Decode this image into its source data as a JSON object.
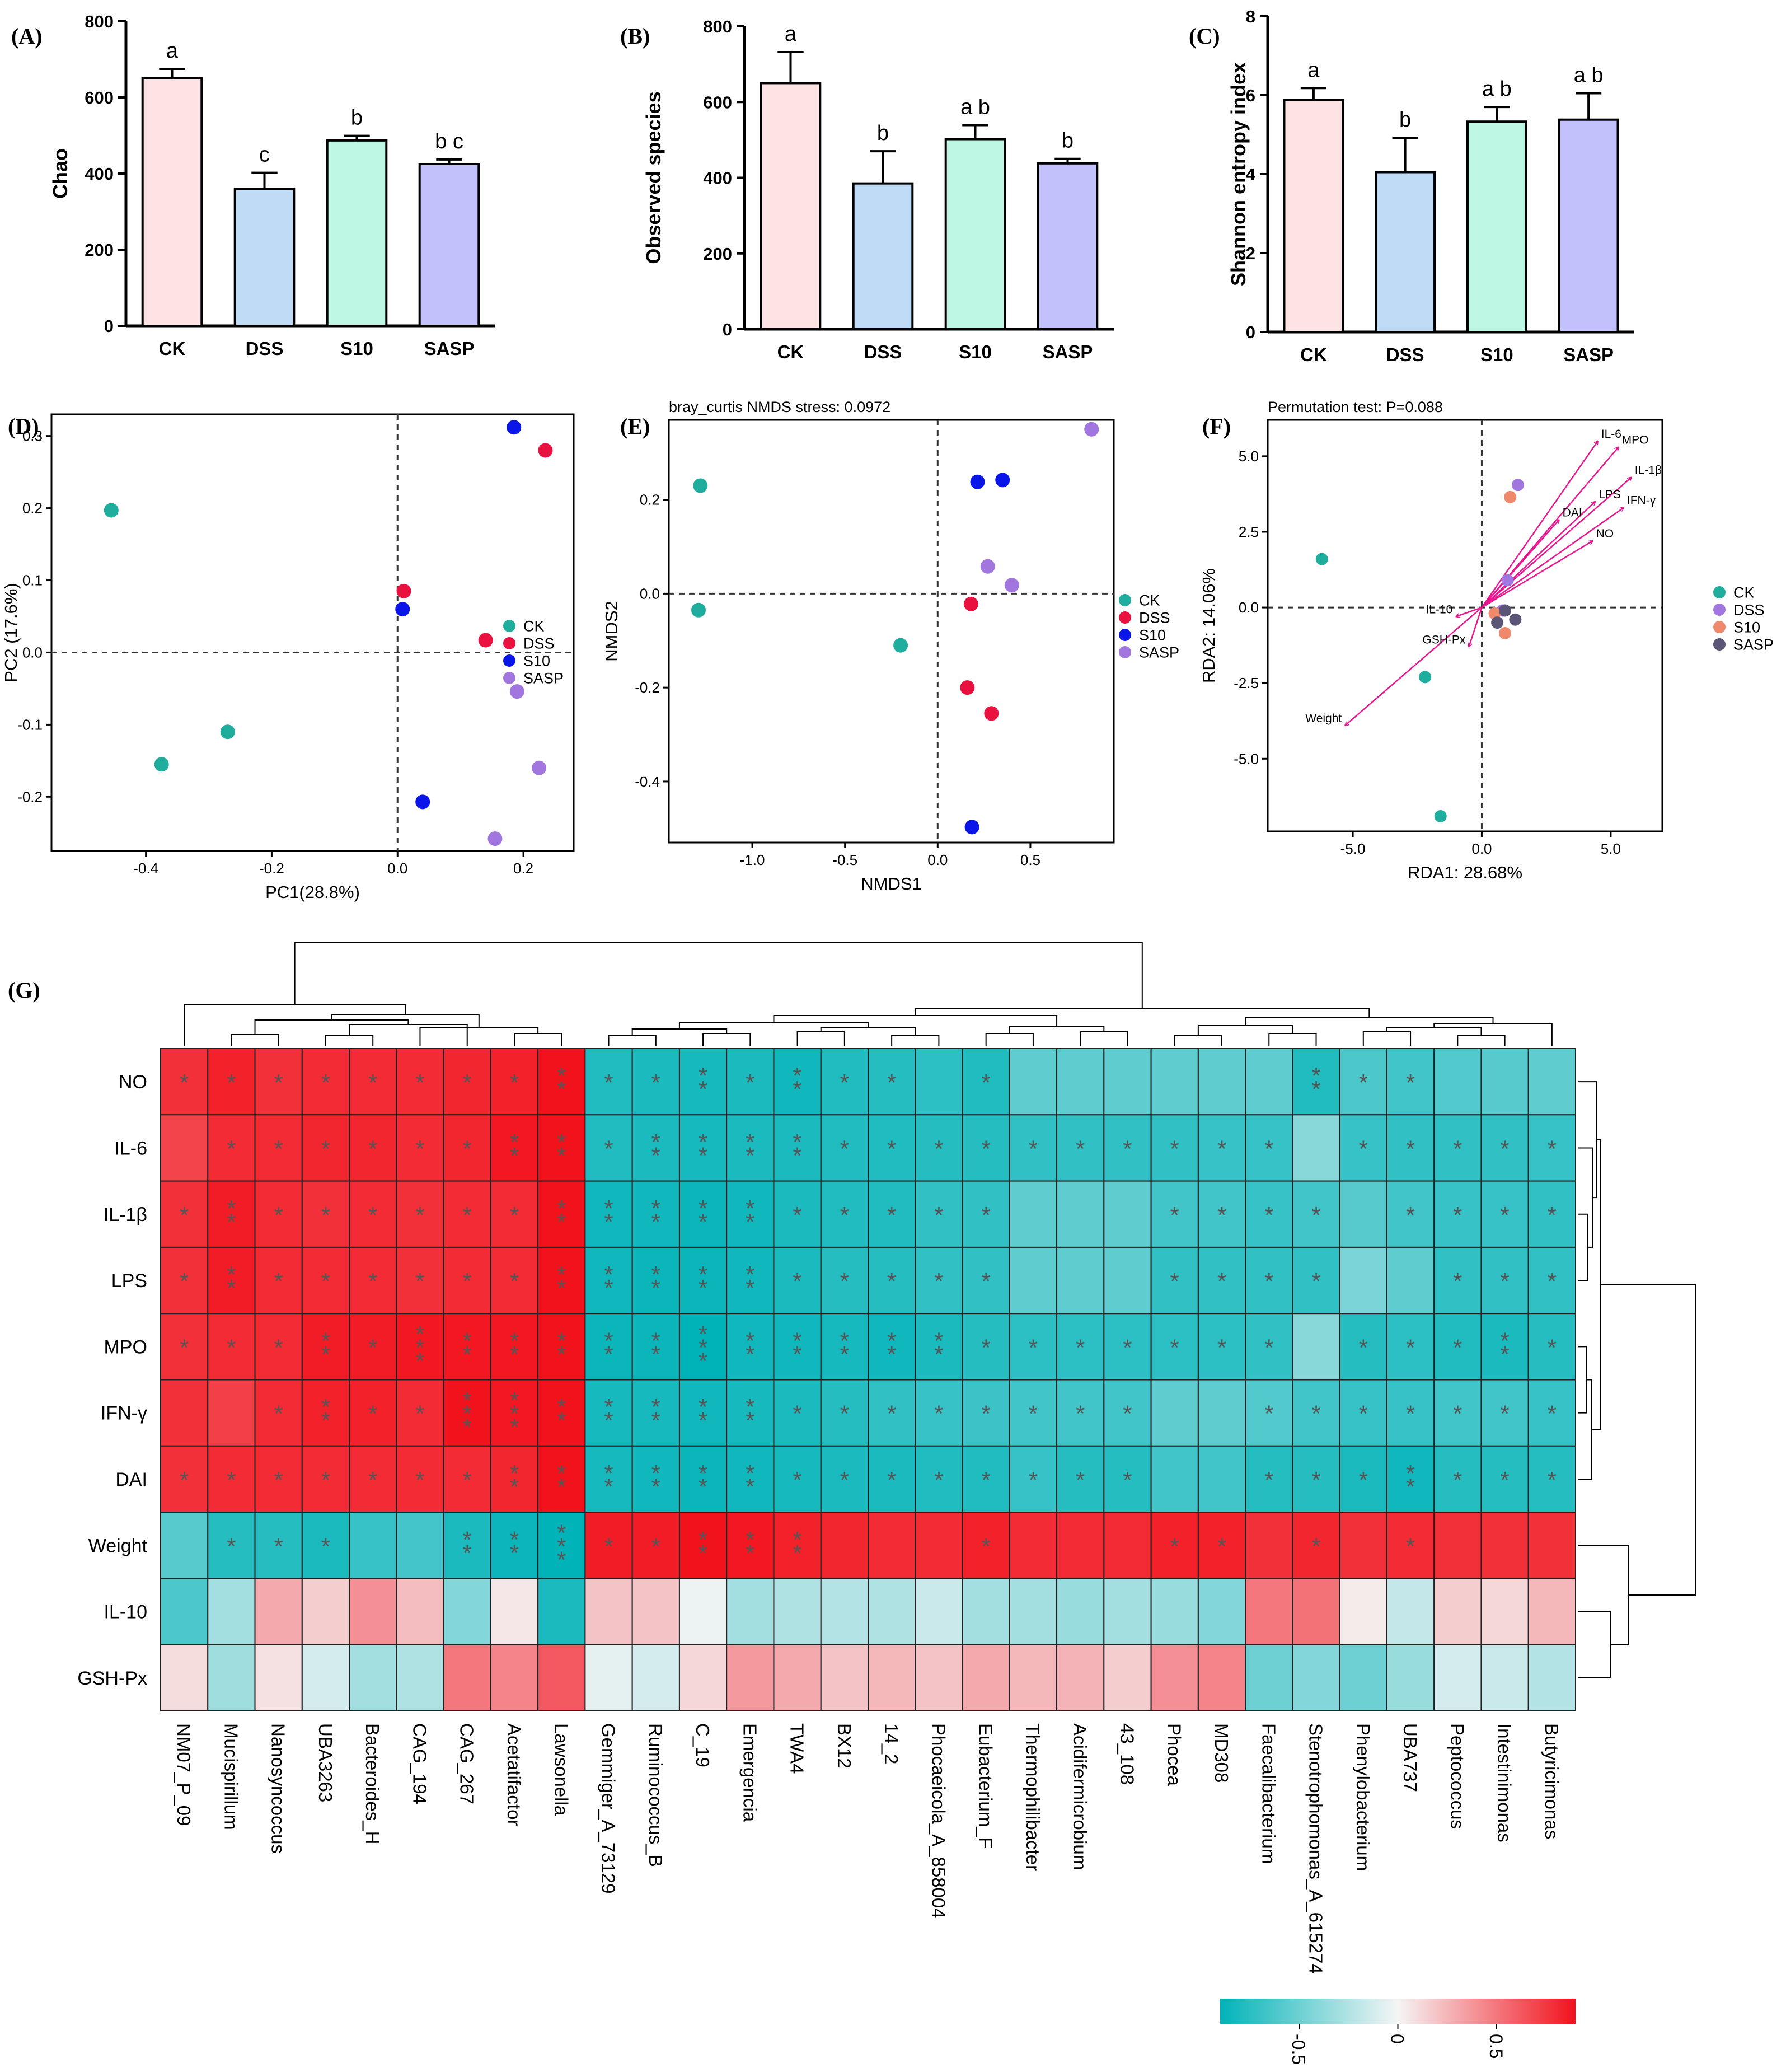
{
  "panels": {
    "A": "(A)",
    "B": "(B)",
    "C": "(C)",
    "D": "(D)",
    "E": "(E)",
    "F": "(F)",
    "G": "(G)"
  },
  "colors": {
    "CK": "#fde3e3",
    "DSS": "#bfdbf6",
    "S10": "#bff7e5",
    "SASP": "#c3c1fb",
    "scatter_CK": "#1fad9e",
    "scatter_DSS": "#e8113f",
    "scatter_S10": "#0a16e8",
    "scatter_SASP": "#a276df",
    "rda_CK": "#1fad9e",
    "rda_DSS": "#a276df",
    "rda_S10": "#ee8a6b",
    "rda_SASP": "#5b5576",
    "arrow": "#e6178f",
    "heat_low": "#00b3b8",
    "heat_mid": "#f5f5f5",
    "heat_high": "#f2121c"
  },
  "chart_data": [
    {
      "type": "bar",
      "panel": "A",
      "categories": [
        "CK",
        "DSS",
        "S10",
        "SASP"
      ],
      "values": [
        650,
        360,
        487,
        425
      ],
      "errors": [
        25,
        42,
        12,
        12
      ],
      "letters": [
        "a",
        "c",
        "b",
        "b c"
      ],
      "ylabel": "Chao",
      "ylim": [
        0,
        800
      ],
      "yticks": [
        "0",
        "200",
        "400",
        "600",
        "800"
      ]
    },
    {
      "type": "bar",
      "panel": "B",
      "categories": [
        "CK",
        "DSS",
        "S10",
        "SASP"
      ],
      "values": [
        650,
        385,
        502,
        438
      ],
      "errors": [
        82,
        85,
        37,
        12
      ],
      "letters": [
        "a",
        "b",
        "a b",
        "b"
      ],
      "ylabel": "Observed species",
      "ylim": [
        0,
        800
      ],
      "yticks": [
        "0",
        "200",
        "400",
        "600",
        "800"
      ]
    },
    {
      "type": "bar",
      "panel": "C",
      "categories": [
        "CK",
        "DSS",
        "S10",
        "SASP"
      ],
      "values": [
        5.88,
        4.05,
        5.33,
        5.38
      ],
      "errors": [
        0.3,
        0.87,
        0.37,
        0.67
      ],
      "letters": [
        "a",
        "b",
        "a b",
        "a b"
      ],
      "ylabel": "Shannon entropy index",
      "ylim": [
        0,
        8
      ],
      "yticks": [
        "0",
        "2",
        "4",
        "6",
        "8"
      ]
    },
    {
      "type": "scatter",
      "panel": "D",
      "xlabel": "PC1(28.8%)",
      "ylabel": "PC2 (17.6%)",
      "xlim": [
        -0.55,
        0.28
      ],
      "ylim": [
        -0.275,
        0.33
      ],
      "xticks": [
        -0.4,
        -0.2,
        0.0,
        0.2
      ],
      "xtick_labels": [
        "-0.4",
        "-0.2",
        "0.0",
        "0.2"
      ],
      "yticks": [
        -0.2,
        -0.1,
        0.0,
        0.1,
        0.2,
        0.3
      ],
      "ytick_labels": [
        "-0.2",
        "-0.1",
        "0.0",
        "0.1",
        "0.2",
        "0.3"
      ],
      "legend": [
        "CK",
        "DSS",
        "S10",
        "SASP"
      ],
      "series": [
        {
          "name": "CK",
          "points": [
            [
              -0.455,
              0.197
            ],
            [
              -0.27,
              -0.11
            ],
            [
              -0.375,
              -0.155
            ]
          ]
        },
        {
          "name": "DSS",
          "points": [
            [
              0.235,
              0.28
            ],
            [
              0.01,
              0.085
            ],
            [
              0.14,
              0.017
            ]
          ]
        },
        {
          "name": "S10",
          "points": [
            [
              0.185,
              0.312
            ],
            [
              0.008,
              0.06
            ],
            [
              0.04,
              -0.207
            ]
          ]
        },
        {
          "name": "SASP",
          "points": [
            [
              0.19,
              -0.054
            ],
            [
              0.225,
              -0.16
            ],
            [
              0.155,
              -0.258
            ]
          ]
        }
      ]
    },
    {
      "type": "scatter",
      "panel": "E",
      "title": "bray_curtis NMDS stress: 0.0972",
      "xlabel": "NMDS1",
      "ylabel": "NMDS2",
      "xlim": [
        -1.45,
        0.95
      ],
      "ylim": [
        -0.53,
        0.37
      ],
      "xticks": [
        -1.0,
        -0.5,
        0.0,
        0.5
      ],
      "xtick_labels": [
        "-1.0",
        "-0.5",
        "0.0",
        "0.5"
      ],
      "yticks": [
        -0.4,
        -0.2,
        0.0,
        0.2
      ],
      "ytick_labels": [
        "-0.4",
        "-0.2",
        "0.0",
        "0.2"
      ],
      "legend": [
        "CK",
        "DSS",
        "S10",
        "SASP"
      ],
      "series": [
        {
          "name": "CK",
          "points": [
            [
              -1.28,
              0.23
            ],
            [
              -1.29,
              -0.035
            ],
            [
              -0.2,
              -0.11
            ]
          ]
        },
        {
          "name": "DSS",
          "points": [
            [
              0.18,
              -0.022
            ],
            [
              0.16,
              -0.2
            ],
            [
              0.29,
              -0.255
            ]
          ]
        },
        {
          "name": "S10",
          "points": [
            [
              0.215,
              0.238
            ],
            [
              0.35,
              0.242
            ],
            [
              0.185,
              -0.497
            ]
          ]
        },
        {
          "name": "SASP",
          "points": [
            [
              0.83,
              0.35
            ],
            [
              0.27,
              0.058
            ],
            [
              0.4,
              0.018
            ]
          ]
        }
      ]
    },
    {
      "type": "scatter",
      "panel": "F",
      "title": "Permutation test: P=0.088",
      "xlabel": "RDA1: 28.68%",
      "ylabel": "RDA2: 14.06%",
      "xlim": [
        -8.3,
        7.0
      ],
      "ylim": [
        -7.4,
        6.2
      ],
      "xticks": [
        -5.0,
        0.0,
        5.0
      ],
      "xtick_labels": [
        "-5.0",
        "0.0",
        "5.0"
      ],
      "yticks": [
        -5.0,
        -2.5,
        0.0,
        2.5,
        5.0
      ],
      "ytick_labels": [
        "-5.0",
        "-2.5",
        "0.0",
        "2.5",
        "5.0"
      ],
      "legend": [
        "CK",
        "DSS",
        "S10",
        "SASP"
      ],
      "series": [
        {
          "name": "CK",
          "points": [
            [
              -6.2,
              1.6
            ],
            [
              -2.2,
              -2.3
            ],
            [
              -1.6,
              -6.9
            ]
          ]
        },
        {
          "name": "DSS",
          "points": [
            [
              1.4,
              4.05
            ],
            [
              1.0,
              0.9
            ],
            [
              0.8,
              -0.1
            ]
          ]
        },
        {
          "name": "S10",
          "points": [
            [
              1.1,
              3.65
            ],
            [
              0.5,
              -0.2
            ],
            [
              0.9,
              -0.85
            ]
          ]
        },
        {
          "name": "SASP",
          "points": [
            [
              0.9,
              -0.1
            ],
            [
              0.6,
              -0.5
            ],
            [
              1.3,
              -0.4
            ]
          ]
        }
      ],
      "arrows": [
        {
          "label": "IL-6",
          "x": 4.5,
          "y": 5.5
        },
        {
          "label": "MPO",
          "x": 5.3,
          "y": 5.3
        },
        {
          "label": "IL-1β",
          "x": 5.8,
          "y": 4.3
        },
        {
          "label": "LPS",
          "x": 4.4,
          "y": 3.5
        },
        {
          "label": "DAI",
          "x": 3.0,
          "y": 2.9
        },
        {
          "label": "IFN-γ",
          "x": 5.5,
          "y": 3.3
        },
        {
          "label": "NO",
          "x": 4.3,
          "y": 2.2
        },
        {
          "label": "IL-10",
          "x": -1.0,
          "y": -0.3
        },
        {
          "label": "GSH-Px",
          "x": -0.5,
          "y": -1.3
        },
        {
          "label": "Weight",
          "x": -5.3,
          "y": -3.9
        }
      ]
    },
    {
      "type": "heatmap",
      "panel": "G",
      "rows": [
        "NO",
        "IL-6",
        "IL-1β",
        "LPS",
        "MPO",
        "IFN-γ",
        "DAI",
        "Weight",
        "IL-10",
        "GSH-Px"
      ],
      "columns": [
        "NM07_P_09",
        "Mucispirillum",
        "Nanosyncoccus",
        "UBA3263",
        "Bacteroides_H",
        "CAG_194",
        "CAG_267",
        "Acetatifactor",
        "Lawsonella",
        "Gemmiger_A_73129",
        "Ruminococcus_B",
        "C_19",
        "Emergencia",
        "TWA4",
        "BX12",
        "14_2",
        "Phocaeicola_A_858004",
        "Eubacterium_F",
        "Thermophilibacter",
        "Acidifermicrobium",
        "43_108",
        "Phocea",
        "MD308",
        "Faecalibacterium",
        "Stenotrophomonas_A_615274",
        "Phenylobacterium",
        "UBA737",
        "Peptococcus",
        "Intestinimonas",
        "Butyricimonas"
      ],
      "values": [
        [
          0.78,
          0.84,
          0.78,
          0.8,
          0.8,
          0.8,
          0.82,
          0.84,
          0.9,
          -0.78,
          -0.8,
          -0.82,
          -0.8,
          -0.84,
          -0.78,
          -0.76,
          -0.74,
          -0.78,
          -0.55,
          -0.55,
          -0.55,
          -0.55,
          -0.55,
          -0.55,
          -0.78,
          -0.62,
          -0.66,
          -0.6,
          -0.58,
          -0.55
        ],
        [
          0.7,
          0.8,
          0.8,
          0.82,
          0.82,
          0.8,
          0.82,
          0.88,
          0.9,
          -0.78,
          -0.8,
          -0.82,
          -0.8,
          -0.8,
          -0.78,
          -0.78,
          -0.76,
          -0.76,
          -0.72,
          -0.72,
          -0.72,
          -0.72,
          -0.7,
          -0.7,
          -0.4,
          -0.7,
          -0.72,
          -0.72,
          -0.72,
          -0.7
        ],
        [
          0.78,
          0.86,
          0.8,
          0.78,
          0.8,
          0.78,
          0.8,
          0.8,
          0.9,
          -0.84,
          -0.84,
          -0.86,
          -0.84,
          -0.8,
          -0.78,
          -0.78,
          -0.72,
          -0.72,
          -0.55,
          -0.55,
          -0.55,
          -0.66,
          -0.66,
          -0.7,
          -0.66,
          -0.58,
          -0.66,
          -0.7,
          -0.7,
          -0.72
        ],
        [
          0.78,
          0.86,
          0.8,
          0.8,
          0.8,
          0.78,
          0.8,
          0.8,
          0.9,
          -0.84,
          -0.86,
          -0.86,
          -0.84,
          -0.8,
          -0.76,
          -0.76,
          -0.72,
          -0.72,
          -0.55,
          -0.55,
          -0.55,
          -0.72,
          -0.72,
          -0.72,
          -0.72,
          -0.45,
          -0.55,
          -0.72,
          -0.72,
          -0.72
        ],
        [
          0.78,
          0.8,
          0.8,
          0.86,
          0.86,
          0.88,
          0.88,
          0.88,
          0.9,
          -0.86,
          -0.86,
          -0.9,
          -0.84,
          -0.84,
          -0.82,
          -0.84,
          -0.8,
          -0.76,
          -0.74,
          -0.74,
          -0.74,
          -0.74,
          -0.74,
          -0.72,
          -0.4,
          -0.76,
          -0.74,
          -0.78,
          -0.8,
          -0.76
        ],
        [
          0.78,
          0.72,
          0.8,
          0.84,
          0.84,
          0.8,
          0.9,
          0.88,
          0.9,
          -0.82,
          -0.82,
          -0.84,
          -0.82,
          -0.8,
          -0.76,
          -0.72,
          -0.7,
          -0.68,
          -0.66,
          -0.66,
          -0.66,
          -0.55,
          -0.55,
          -0.6,
          -0.66,
          -0.7,
          -0.7,
          -0.66,
          -0.66,
          -0.7
        ],
        [
          0.78,
          0.8,
          0.8,
          0.8,
          0.8,
          0.8,
          0.8,
          0.82,
          0.9,
          -0.82,
          -0.84,
          -0.86,
          -0.84,
          -0.82,
          -0.8,
          -0.8,
          -0.78,
          -0.78,
          -0.7,
          -0.76,
          -0.76,
          -0.66,
          -0.66,
          -0.76,
          -0.76,
          -0.8,
          -0.84,
          -0.76,
          -0.76,
          -0.76
        ],
        [
          -0.58,
          -0.76,
          -0.76,
          -0.8,
          -0.7,
          -0.65,
          -0.8,
          -0.86,
          -0.92,
          0.86,
          0.86,
          0.9,
          0.88,
          0.84,
          0.82,
          0.8,
          0.8,
          0.84,
          0.8,
          0.8,
          0.8,
          0.84,
          0.84,
          0.78,
          0.82,
          0.78,
          0.8,
          0.78,
          0.78,
          0.78
        ],
        [
          -0.62,
          -0.3,
          0.3,
          0.16,
          0.4,
          0.22,
          -0.42,
          0.06,
          -0.8,
          0.2,
          0.2,
          -0.03,
          -0.3,
          -0.26,
          -0.24,
          -0.26,
          -0.16,
          -0.3,
          -0.3,
          -0.34,
          -0.3,
          -0.34,
          -0.42,
          0.5,
          0.52,
          0.04,
          -0.18,
          0.16,
          0.12,
          0.24
        ],
        [
          0.1,
          -0.32,
          0.08,
          -0.12,
          -0.3,
          -0.26,
          0.5,
          0.45,
          0.62,
          -0.06,
          -0.12,
          0.12,
          0.36,
          0.3,
          0.2,
          0.24,
          0.2,
          0.3,
          0.24,
          0.26,
          0.16,
          0.4,
          0.45,
          -0.5,
          -0.42,
          -0.5,
          -0.34,
          -0.12,
          -0.16,
          -0.24
        ]
      ],
      "stars": [
        [
          1,
          1,
          1,
          1,
          1,
          1,
          1,
          1,
          2,
          1,
          1,
          2,
          1,
          2,
          1,
          1,
          0,
          1,
          0,
          0,
          0,
          0,
          0,
          0,
          2,
          1,
          1,
          0,
          0,
          0
        ],
        [
          0,
          1,
          1,
          1,
          1,
          1,
          1,
          2,
          2,
          1,
          2,
          2,
          2,
          2,
          1,
          1,
          1,
          1,
          1,
          1,
          1,
          1,
          1,
          1,
          0,
          1,
          1,
          1,
          1,
          1
        ],
        [
          1,
          2,
          1,
          1,
          1,
          1,
          1,
          1,
          2,
          2,
          2,
          2,
          2,
          1,
          1,
          1,
          1,
          1,
          0,
          0,
          0,
          1,
          1,
          1,
          1,
          0,
          1,
          1,
          1,
          1
        ],
        [
          1,
          2,
          1,
          1,
          1,
          1,
          1,
          1,
          2,
          2,
          2,
          2,
          2,
          1,
          1,
          1,
          1,
          1,
          0,
          0,
          0,
          1,
          1,
          1,
          1,
          0,
          0,
          1,
          1,
          1
        ],
        [
          1,
          1,
          1,
          2,
          1,
          3,
          2,
          2,
          2,
          2,
          2,
          3,
          2,
          2,
          2,
          2,
          2,
          1,
          1,
          1,
          1,
          1,
          1,
          1,
          0,
          1,
          1,
          1,
          2,
          1
        ],
        [
          0,
          0,
          1,
          2,
          1,
          1,
          3,
          3,
          2,
          2,
          2,
          2,
          2,
          1,
          1,
          1,
          1,
          1,
          1,
          1,
          1,
          0,
          0,
          1,
          1,
          1,
          1,
          1,
          1,
          1
        ],
        [
          1,
          1,
          1,
          1,
          1,
          1,
          1,
          2,
          2,
          2,
          2,
          2,
          2,
          1,
          1,
          1,
          1,
          1,
          1,
          1,
          1,
          0,
          0,
          1,
          1,
          1,
          2,
          1,
          1,
          1
        ],
        [
          0,
          1,
          1,
          1,
          0,
          0,
          2,
          2,
          3,
          1,
          1,
          2,
          2,
          2,
          0,
          0,
          0,
          1,
          0,
          0,
          0,
          1,
          1,
          0,
          1,
          0,
          1,
          0,
          0,
          0
        ],
        [
          0,
          0,
          0,
          0,
          0,
          0,
          0,
          0,
          0,
          0,
          0,
          0,
          0,
          0,
          0,
          0,
          0,
          0,
          0,
          0,
          0,
          0,
          0,
          0,
          0,
          0,
          0,
          0,
          0,
          0
        ],
        [
          0,
          0,
          0,
          0,
          0,
          0,
          0,
          0,
          0,
          0,
          0,
          0,
          0,
          0,
          0,
          0,
          0,
          0,
          0,
          0,
          0,
          0,
          0,
          0,
          0,
          0,
          0,
          0,
          0,
          0
        ]
      ],
      "colorbar_ticks": [
        "-0.5",
        "0",
        "0.5"
      ],
      "colorbar_range": [
        -0.9,
        0.9
      ],
      "star_symbol": "*"
    }
  ]
}
